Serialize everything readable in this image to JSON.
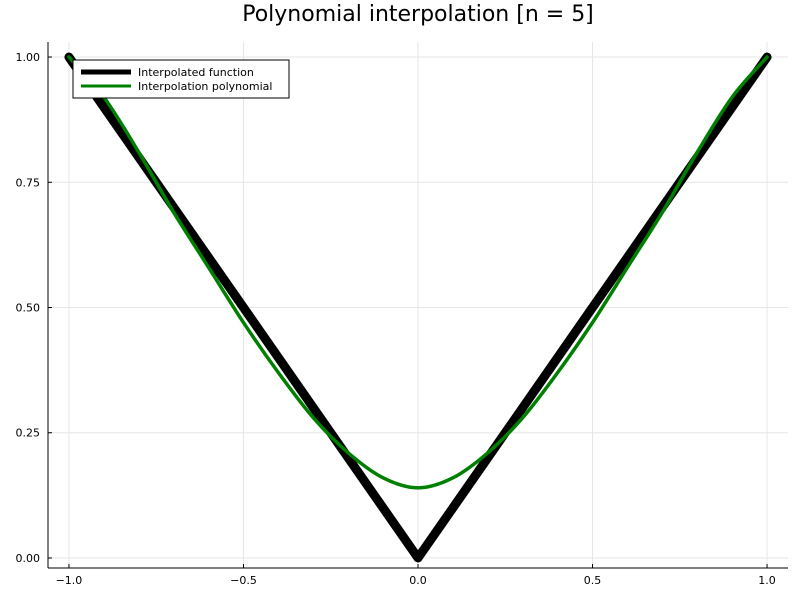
{
  "chart_data": {
    "type": "line",
    "title": "Polynomial interpolation [n = 5]",
    "xlabel": "",
    "ylabel": "",
    "xlim": [
      -1.06,
      1.06
    ],
    "ylim": [
      -0.02,
      1.03
    ],
    "x_ticks": [
      {
        "value": -1.0,
        "label": "−1.0"
      },
      {
        "value": -0.5,
        "label": "−0.5"
      },
      {
        "value": 0.0,
        "label": "0.0"
      },
      {
        "value": 0.5,
        "label": "0.5"
      },
      {
        "value": 1.0,
        "label": "1.0"
      }
    ],
    "y_ticks": [
      {
        "value": 0.0,
        "label": "0.00"
      },
      {
        "value": 0.25,
        "label": "0.25"
      },
      {
        "value": 0.5,
        "label": "0.50"
      },
      {
        "value": 0.75,
        "label": "0.75"
      },
      {
        "value": 1.0,
        "label": "1.00"
      }
    ],
    "grid": true,
    "legend_position": "top-left",
    "series": [
      {
        "name": "Interpolated function",
        "color": "#000000",
        "x": [
          -1.0,
          -0.5,
          0.0,
          0.5,
          1.0
        ],
        "y": [
          1.0,
          0.5,
          0.0,
          0.5,
          1.0
        ]
      },
      {
        "name": "Interpolation polynomial",
        "color": "#008000",
        "x": [
          -1.0,
          -0.9,
          -0.8,
          -0.7,
          -0.6,
          -0.5,
          -0.4,
          -0.3,
          -0.2,
          -0.1,
          0.0,
          0.1,
          0.2,
          0.3,
          0.4,
          0.5,
          0.6,
          0.7,
          0.8,
          0.9,
          1.0
        ],
        "y": [
          1.0,
          0.92,
          0.81,
          0.69,
          0.58,
          0.47,
          0.37,
          0.28,
          0.21,
          0.16,
          0.14,
          0.16,
          0.21,
          0.28,
          0.37,
          0.47,
          0.58,
          0.69,
          0.81,
          0.92,
          1.0
        ]
      }
    ]
  }
}
